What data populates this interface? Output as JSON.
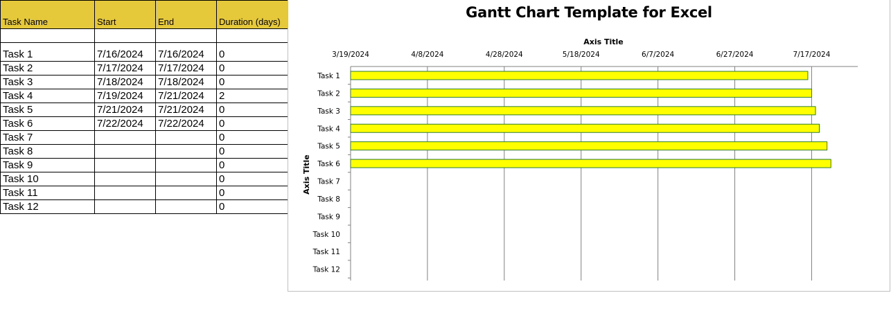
{
  "sheet": {
    "headers": [
      "Task Name",
      "Start",
      "End",
      "Duration (days)"
    ],
    "rows": [
      [
        "Task 1",
        "7/16/2024",
        "7/16/2024",
        "0"
      ],
      [
        "Task 2",
        "7/17/2024",
        "7/17/2024",
        "0"
      ],
      [
        "Task 3",
        "7/18/2024",
        "7/18/2024",
        "0"
      ],
      [
        "Task 4",
        "7/19/2024",
        "7/21/2024",
        "2"
      ],
      [
        "Task 5",
        "7/21/2024",
        "7/21/2024",
        "0"
      ],
      [
        "Task 6",
        "7/22/2024",
        "7/22/2024",
        "0"
      ],
      [
        "Task 7",
        "",
        "",
        "0"
      ],
      [
        "Task 8",
        "",
        "",
        "0"
      ],
      [
        "Task 9",
        "",
        "",
        "0"
      ],
      [
        "Task 10",
        "",
        "",
        "0"
      ],
      [
        "Task 11",
        "",
        "",
        "0"
      ],
      [
        "Task 12",
        "",
        "",
        "0"
      ]
    ],
    "header_color": "#e6c93b"
  },
  "chart_data": {
    "type": "bar",
    "orientation": "horizontal",
    "title": "Gantt Chart Template for Excel",
    "xlabel": "Axis Title",
    "ylabel": "Axis Title",
    "x_axis_position": "top",
    "x_ticks": [
      "3/19/2024",
      "4/8/2024",
      "4/28/2024",
      "5/18/2024",
      "6/7/2024",
      "6/27/2024",
      "7/17/2024"
    ],
    "xlim": [
      "3/19/2024",
      "7/29/2024"
    ],
    "categories": [
      "Task 1",
      "Task 2",
      "Task 3",
      "Task 4",
      "Task 5",
      "Task 6",
      "Task 7",
      "Task 8",
      "Task 9",
      "Task 10",
      "Task 11",
      "Task 12"
    ],
    "values": [
      "7/16/2024",
      "7/17/2024",
      "7/18/2024",
      "7/19/2024",
      "7/21/2024",
      "7/22/2024",
      null,
      null,
      null,
      null,
      null,
      null
    ],
    "bar_color": "#ffff00",
    "bar_border": "#2e7d32",
    "grid": true
  }
}
